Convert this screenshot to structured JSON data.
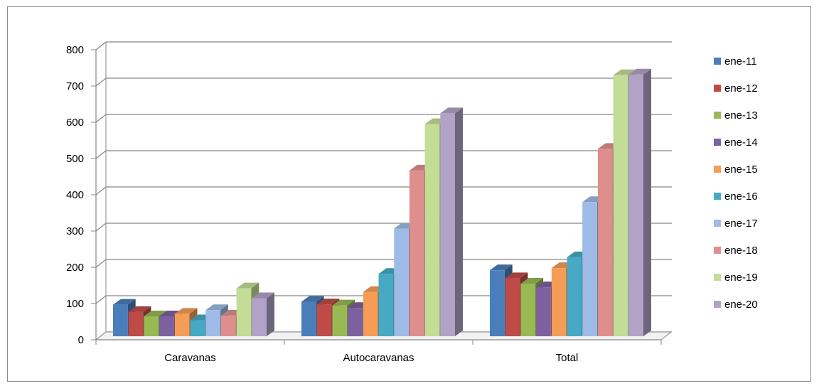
{
  "chart_data": {
    "type": "bar",
    "style": "3d-clustered-column",
    "categories": [
      "Caravanas",
      "Autocaravanas",
      "Total"
    ],
    "series": [
      {
        "name": "ene-11",
        "color": "#4a7ebb",
        "values": [
          87,
          95,
          182
        ]
      },
      {
        "name": "ene-12",
        "color": "#be4b48",
        "values": [
          67,
          88,
          160
        ]
      },
      {
        "name": "ene-13",
        "color": "#98b954",
        "values": [
          55,
          85,
          145
        ]
      },
      {
        "name": "ene-14",
        "color": "#7d60a0",
        "values": [
          55,
          78,
          135
        ]
      },
      {
        "name": "ene-15",
        "color": "#f59d56",
        "values": [
          62,
          122,
          188
        ]
      },
      {
        "name": "ene-16",
        "color": "#46aac5",
        "values": [
          44,
          172,
          218
        ]
      },
      {
        "name": "ene-17",
        "color": "#9dbbe6",
        "values": [
          72,
          297,
          370
        ]
      },
      {
        "name": "ene-18",
        "color": "#de8f8d",
        "values": [
          57,
          457,
          517
        ]
      },
      {
        "name": "ene-19",
        "color": "#c3dc96",
        "values": [
          132,
          585,
          720
        ]
      },
      {
        "name": "ene-20",
        "color": "#b2a2c7",
        "values": [
          105,
          615,
          722
        ]
      }
    ],
    "y_ticks": [
      "0",
      "100",
      "200",
      "300",
      "400",
      "500",
      "600",
      "700",
      "800"
    ],
    "ylim": [
      0,
      800
    ],
    "grid": true,
    "legend_position": "right"
  }
}
